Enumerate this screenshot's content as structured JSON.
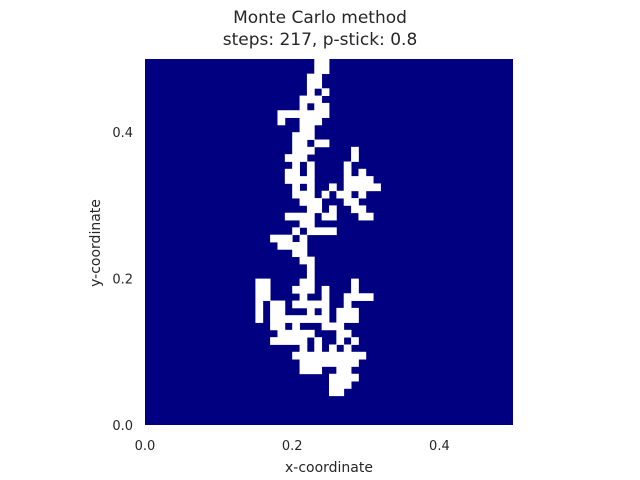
{
  "chart_data": {
    "type": "heatmap",
    "title": "Monte Carlo method",
    "subtitle": "steps: 217, p-stick: 0.8",
    "xlabel": "x-coordinate",
    "ylabel": "y-coordinate",
    "xlim": [
      0.0,
      0.5
    ],
    "ylim": [
      0.0,
      0.5
    ],
    "x_ticks": [
      "0.0",
      "0.2",
      "0.4"
    ],
    "y_ticks": [
      "0.0",
      "0.2",
      "0.4"
    ],
    "grid_cells": 50,
    "cell_size": 0.01,
    "background_color": "#000080",
    "particle_color": "#ffffff",
    "grid": false,
    "stuck_cells_col_row": [
      [
        23,
        0
      ],
      [
        24,
        0
      ],
      [
        23,
        1
      ],
      [
        24,
        1
      ],
      [
        22,
        2
      ],
      [
        23,
        2
      ],
      [
        22,
        3
      ],
      [
        23,
        3
      ],
      [
        22,
        4
      ],
      [
        24,
        4
      ],
      [
        21,
        5
      ],
      [
        22,
        5
      ],
      [
        23,
        5
      ],
      [
        21,
        6
      ],
      [
        23,
        6
      ],
      [
        24,
        6
      ],
      [
        18,
        7
      ],
      [
        19,
        7
      ],
      [
        20,
        7
      ],
      [
        21,
        7
      ],
      [
        22,
        7
      ],
      [
        23,
        7
      ],
      [
        24,
        7
      ],
      [
        18,
        8
      ],
      [
        21,
        8
      ],
      [
        22,
        8
      ],
      [
        23,
        8
      ],
      [
        21,
        9
      ],
      [
        22,
        9
      ],
      [
        20,
        10
      ],
      [
        21,
        10
      ],
      [
        22,
        10
      ],
      [
        20,
        11
      ],
      [
        21,
        11
      ],
      [
        23,
        11
      ],
      [
        24,
        11
      ],
      [
        20,
        12
      ],
      [
        21,
        12
      ],
      [
        22,
        12
      ],
      [
        28,
        12
      ],
      [
        19,
        13
      ],
      [
        20,
        13
      ],
      [
        21,
        13
      ],
      [
        28,
        13
      ],
      [
        20,
        14
      ],
      [
        22,
        14
      ],
      [
        27,
        14
      ],
      [
        19,
        15
      ],
      [
        20,
        15
      ],
      [
        22,
        15
      ],
      [
        27,
        15
      ],
      [
        29,
        15
      ],
      [
        19,
        16
      ],
      [
        20,
        16
      ],
      [
        21,
        16
      ],
      [
        22,
        16
      ],
      [
        27,
        16
      ],
      [
        28,
        16
      ],
      [
        29,
        16
      ],
      [
        30,
        16
      ],
      [
        20,
        17
      ],
      [
        22,
        17
      ],
      [
        25,
        17
      ],
      [
        27,
        17
      ],
      [
        28,
        17
      ],
      [
        29,
        17
      ],
      [
        30,
        17
      ],
      [
        31,
        17
      ],
      [
        20,
        18
      ],
      [
        21,
        18
      ],
      [
        22,
        18
      ],
      [
        24,
        18
      ],
      [
        26,
        18
      ],
      [
        27,
        18
      ],
      [
        29,
        18
      ],
      [
        21,
        19
      ],
      [
        22,
        19
      ],
      [
        23,
        19
      ],
      [
        27,
        19
      ],
      [
        28,
        19
      ],
      [
        22,
        20
      ],
      [
        23,
        20
      ],
      [
        25,
        20
      ],
      [
        28,
        20
      ],
      [
        29,
        20
      ],
      [
        19,
        21
      ],
      [
        20,
        21
      ],
      [
        21,
        21
      ],
      [
        22,
        21
      ],
      [
        24,
        21
      ],
      [
        25,
        21
      ],
      [
        29,
        21
      ],
      [
        30,
        21
      ],
      [
        21,
        22
      ],
      [
        22,
        22
      ],
      [
        20,
        23
      ],
      [
        22,
        23
      ],
      [
        23,
        23
      ],
      [
        24,
        23
      ],
      [
        25,
        23
      ],
      [
        17,
        24
      ],
      [
        18,
        24
      ],
      [
        19,
        24
      ],
      [
        21,
        24
      ],
      [
        18,
        25
      ],
      [
        19,
        25
      ],
      [
        20,
        25
      ],
      [
        21,
        25
      ],
      [
        20,
        26
      ],
      [
        21,
        26
      ],
      [
        21,
        27
      ],
      [
        22,
        27
      ],
      [
        22,
        28
      ],
      [
        22,
        29
      ],
      [
        15,
        30
      ],
      [
        16,
        30
      ],
      [
        21,
        30
      ],
      [
        22,
        30
      ],
      [
        28,
        30
      ],
      [
        15,
        31
      ],
      [
        16,
        31
      ],
      [
        20,
        31
      ],
      [
        21,
        31
      ],
      [
        22,
        31
      ],
      [
        24,
        31
      ],
      [
        28,
        31
      ],
      [
        15,
        32
      ],
      [
        16,
        32
      ],
      [
        21,
        32
      ],
      [
        24,
        32
      ],
      [
        27,
        32
      ],
      [
        28,
        32
      ],
      [
        29,
        32
      ],
      [
        30,
        32
      ],
      [
        15,
        33
      ],
      [
        17,
        33
      ],
      [
        18,
        33
      ],
      [
        20,
        33
      ],
      [
        21,
        33
      ],
      [
        22,
        33
      ],
      [
        23,
        33
      ],
      [
        24,
        33
      ],
      [
        27,
        33
      ],
      [
        15,
        34
      ],
      [
        17,
        34
      ],
      [
        18,
        34
      ],
      [
        22,
        34
      ],
      [
        24,
        34
      ],
      [
        26,
        34
      ],
      [
        27,
        34
      ],
      [
        28,
        34
      ],
      [
        15,
        35
      ],
      [
        17,
        35
      ],
      [
        18,
        35
      ],
      [
        19,
        35
      ],
      [
        20,
        35
      ],
      [
        21,
        35
      ],
      [
        22,
        35
      ],
      [
        23,
        35
      ],
      [
        24,
        35
      ],
      [
        26,
        35
      ],
      [
        27,
        35
      ],
      [
        28,
        35
      ],
      [
        17,
        36
      ],
      [
        18,
        36
      ],
      [
        20,
        36
      ],
      [
        24,
        36
      ],
      [
        25,
        36
      ],
      [
        26,
        36
      ],
      [
        18,
        37
      ],
      [
        19,
        37
      ],
      [
        20,
        37
      ],
      [
        21,
        37
      ],
      [
        22,
        37
      ],
      [
        26,
        37
      ],
      [
        27,
        37
      ],
      [
        17,
        38
      ],
      [
        18,
        38
      ],
      [
        19,
        38
      ],
      [
        20,
        38
      ],
      [
        21,
        38
      ],
      [
        23,
        38
      ],
      [
        26,
        38
      ],
      [
        28,
        38
      ],
      [
        21,
        39
      ],
      [
        23,
        39
      ],
      [
        25,
        39
      ],
      [
        27,
        39
      ],
      [
        20,
        40
      ],
      [
        21,
        40
      ],
      [
        22,
        40
      ],
      [
        23,
        40
      ],
      [
        24,
        40
      ],
      [
        25,
        40
      ],
      [
        26,
        40
      ],
      [
        27,
        40
      ],
      [
        28,
        40
      ],
      [
        29,
        40
      ],
      [
        21,
        41
      ],
      [
        22,
        41
      ],
      [
        23,
        41
      ],
      [
        24,
        41
      ],
      [
        25,
        41
      ],
      [
        26,
        41
      ],
      [
        27,
        41
      ],
      [
        28,
        41
      ],
      [
        21,
        42
      ],
      [
        22,
        42
      ],
      [
        23,
        42
      ],
      [
        26,
        42
      ],
      [
        27,
        42
      ],
      [
        25,
        43
      ],
      [
        26,
        43
      ],
      [
        27,
        43
      ],
      [
        28,
        43
      ],
      [
        25,
        44
      ],
      [
        26,
        44
      ],
      [
        27,
        44
      ],
      [
        25,
        45
      ],
      [
        26,
        45
      ]
    ]
  }
}
